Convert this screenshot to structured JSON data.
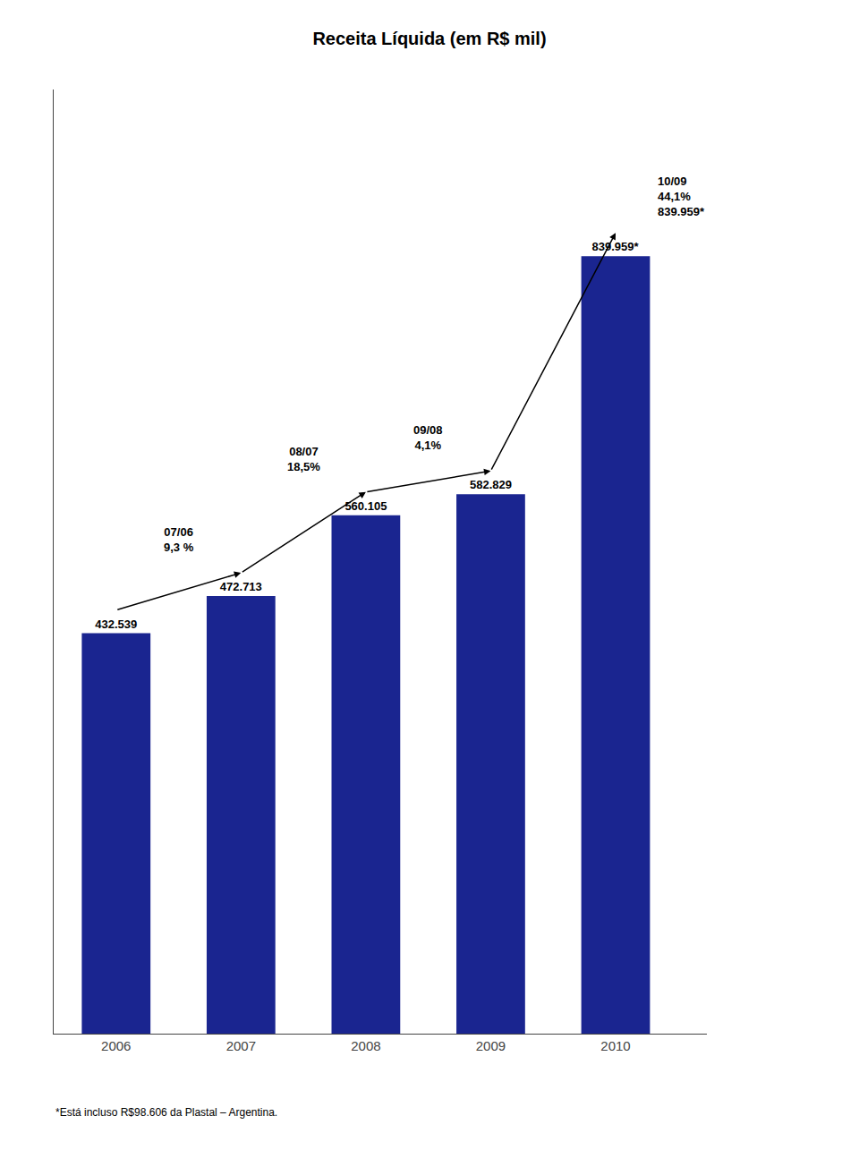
{
  "chart_data": {
    "type": "bar",
    "title": "Receita Líquida (em R$ mil)",
    "categories": [
      "2006",
      "2007",
      "2008",
      "2009",
      "2010"
    ],
    "values": [
      432.539,
      472.713,
      560.105,
      582.829,
      839.959
    ],
    "value_labels": [
      "432.539",
      "472.713",
      "560.105",
      "582.829",
      "839.959*"
    ],
    "data_labels": true,
    "color": "#1A2590",
    "ylim": [
      0,
      1020
    ],
    "yticks": [],
    "tick_labels": "x",
    "grid": false,
    "annotations": [
      {
        "text": "07/06\n9,3 %",
        "from": "2006",
        "to": "2007"
      },
      {
        "text": "08/07\n18,5%",
        "from": "2007",
        "to": "2008"
      },
      {
        "text": "09/08\n4,1%",
        "from": "2008",
        "to": "2009"
      },
      {
        "text": "10/09\n44,1%\n839.959*",
        "from": "2009",
        "to": "2010"
      },
      {
        "text": "*Está incluso R$98.606 da Plastal – Argentina."
      }
    ]
  }
}
